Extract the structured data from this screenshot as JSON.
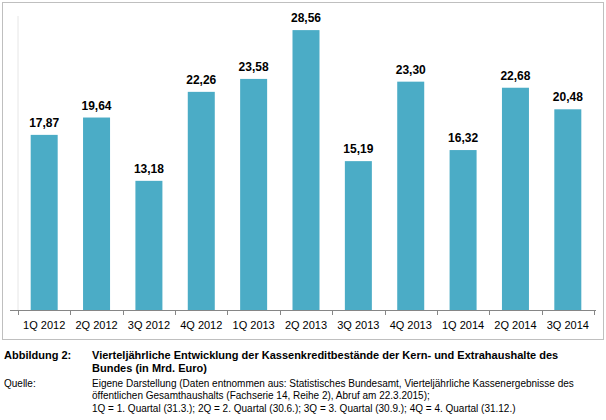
{
  "chart_data": {
    "type": "bar",
    "figure_label": "Abbildung 2:",
    "title": "Vierteljährliche Entwicklung der Kassenkreditbestände der Kern- und Extrahaushalte des Bundes (in Mrd. Euro)",
    "source_label": "Quelle:",
    "source": "Eigene Darstellung (Daten entnommen aus: Statistisches Bundesamt, Vierteljährliche Kassenergebnisse des öffentlichen Gesamthaushalts (Fachserie 14, Reihe 2), Abruf am 22.3.2015);",
    "note": "1Q = 1. Quartal (31.3.); 2Q = 2. Quartal (30.6.); 3Q = 3. Quartal (30.9.); 4Q = 4. Quartal (31.12.)",
    "categories": [
      "1Q 2012",
      "2Q 2012",
      "3Q 2012",
      "4Q 2012",
      "1Q 2013",
      "2Q 2013",
      "3Q 2013",
      "4Q 2013",
      "1Q 2014",
      "2Q 2014",
      "3Q 2014"
    ],
    "values": [
      17.87,
      19.64,
      13.18,
      22.26,
      23.58,
      28.56,
      15.19,
      23.3,
      16.32,
      22.68,
      20.48
    ],
    "value_labels": [
      "17,87",
      "19,64",
      "13,18",
      "22,26",
      "23,58",
      "28,56",
      "15,19",
      "23,30",
      "16,32",
      "22,68",
      "20,48"
    ],
    "color": "#4bacc6",
    "ylim": [
      0,
      30
    ],
    "data_labels": true,
    "tick_labels": "x",
    "grid": false
  }
}
